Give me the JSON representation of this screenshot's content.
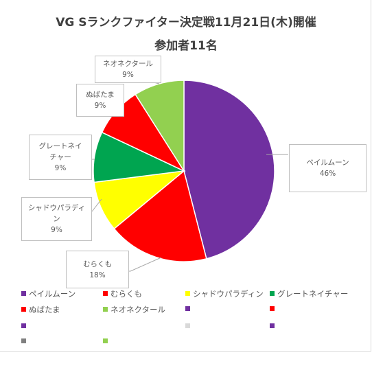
{
  "chart_data": {
    "type": "pie",
    "title": "VG Sランクファイター決定戦11月21日(木)開催",
    "subtitle": "参加者11名",
    "slices": [
      {
        "name": "ペイルムーン",
        "value": 46,
        "label_pct": "46%",
        "color": "#7030a0"
      },
      {
        "name": "むらくも",
        "value": 18,
        "label_pct": "18%",
        "color": "#ff0000"
      },
      {
        "name": "シャドウパラディン",
        "value": 9,
        "label_pct": "9%",
        "color": "#ffff00"
      },
      {
        "name": "グレートネイチャー",
        "value": 9,
        "label_pct": "9%",
        "color": "#00a550"
      },
      {
        "name": "ぬばたま",
        "value": 9,
        "label_pct": "9%",
        "color": "#ff0000"
      },
      {
        "name": "ネオネクタール",
        "value": 9,
        "label_pct": "9%",
        "color": "#92d050"
      }
    ],
    "callout_labels": {
      "pale": "ペイルムーン",
      "murakumo": "むらくも",
      "shadow_a": "シャドウパラディ",
      "shadow_b": "ン",
      "great_a": "グレートネイ",
      "great_b": "チャー",
      "nubatama": "ぬばたま",
      "neo": "ネオネクタール"
    },
    "legend": [
      {
        "label": "ペイルムーン",
        "color": "#7030a0"
      },
      {
        "label": "むらくも",
        "color": "#ff0000"
      },
      {
        "label": "シャドウパラディン",
        "color": "#ffff00"
      },
      {
        "label": "グレートネイチャー",
        "color": "#00a550"
      },
      {
        "label": "ぬばたま",
        "color": "#ff0000"
      },
      {
        "label": "ネオネクタール",
        "color": "#92d050"
      },
      {
        "label": "",
        "color": "#7030a0"
      },
      {
        "label": "",
        "color": "#ff0000"
      },
      {
        "label": "",
        "color": "#7030a0"
      },
      {
        "label": "",
        "color": "#d9d9d9"
      },
      {
        "label": "",
        "color": "#7030a0"
      },
      {
        "label": "",
        "color": "#808080"
      },
      {
        "label": "",
        "color": "#92d050"
      }
    ],
    "legend_position": "bottom"
  }
}
